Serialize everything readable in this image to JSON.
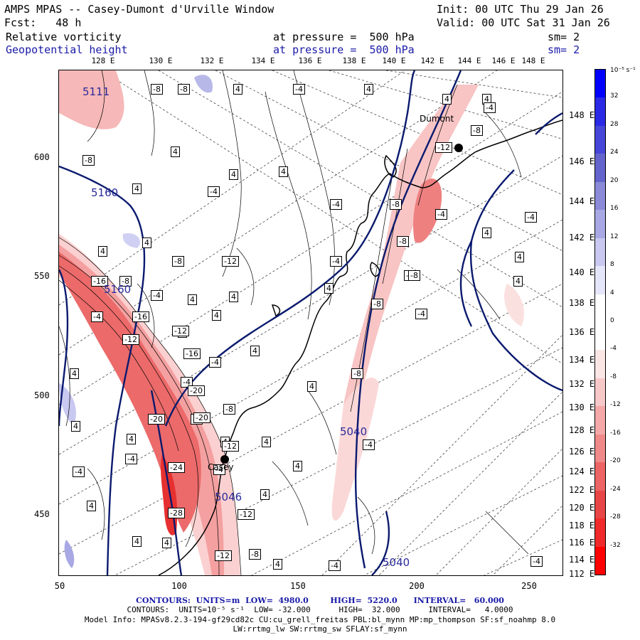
{
  "header": {
    "title": "AMPS MPAS -- Casey-Dumont d'Urville Window",
    "init": "Init: 00 UTC Thu 29 Jan 26",
    "fcst": "Fcst:   48 h",
    "valid": "Valid: 00 UTC Sat 31 Jan 26",
    "field1": "Relative vorticity",
    "field1_level": "at pressure =  500 hPa",
    "field1_sm": "sm= 2",
    "field2": "Geopotential height",
    "field2_level": "at pressure =  500 hPa",
    "field2_sm": "sm= 2"
  },
  "top_longitudes": [
    "128 E",
    "130 E",
    "132 E",
    "134 E",
    "136 E",
    "138 E",
    "140 E",
    "142 E",
    "144 E",
    "146 E",
    "148 E"
  ],
  "right_latitudes": [
    "148 E",
    "146 E",
    "144 E",
    "142 E",
    "140 E",
    "138 E",
    "136 E",
    "134 E",
    "132 E",
    "130 E",
    "128 E",
    "126 E",
    "124 E",
    "122 E",
    "120 E",
    "118 E",
    "116 E",
    "114 E",
    "112 E"
  ],
  "x_ticks": [
    "50",
    "100",
    "150",
    "200",
    "250"
  ],
  "y_ticks": [
    "600",
    "550",
    "500",
    "450"
  ],
  "colorbar": {
    "unit": "10⁻⁵ s⁻¹",
    "labels": [
      "32",
      "28",
      "24",
      "20",
      "16",
      "12",
      "8",
      "4",
      "0",
      "-4",
      "-8",
      "-12",
      "-16",
      "-20",
      "-24",
      "-28",
      "-32"
    ],
    "colors": [
      "#0000ff",
      "#2a2ae6",
      "#4646d8",
      "#6464cc",
      "#8a8ad8",
      "#a8a8e4",
      "#c8c8f0",
      "#e6e6fa",
      "#ffffff",
      "#ffffff",
      "#fbe6e6",
      "#f8c8c8",
      "#f4a8a8",
      "#f08a8a",
      "#ec6464",
      "#e84646",
      "#f02a2a",
      "#ff0000"
    ]
  },
  "height_labels": [
    "5111",
    "5160",
    "5160",
    "5046",
    "5040",
    "5040"
  ],
  "cities": [
    "Dumont",
    "Casey"
  ],
  "footer": {
    "line1": "CONTOURS:  UNITS=m  LOW=  4980.0        HIGH=  5220.0      INTERVAL=   60.000",
    "line2": "CONTOURS:  UNITS=10⁻⁵ s⁻¹  LOW= -32.000      HIGH=  32.000      INTERVAL=   4.0000",
    "line3": "Model Info: MPASv8.2.3-194-gf29cd82c CU:cu_grell_freitas PBL:bl_mynn MP:mp_thompson SF:sf_noahmp 8.0",
    "line4": "LW:rrtmg_lw SW:rrtmg_sw SFLAY:sf_mynn"
  },
  "vort_labels": [
    "-8",
    "-8",
    "4",
    "-4",
    "4",
    "4",
    "4",
    "-4",
    "-8",
    "-12",
    "-8",
    "4",
    "4",
    "4",
    "-4",
    "-8",
    "-4",
    "4",
    "4",
    "4",
    "-8",
    "-12",
    "-4",
    "4",
    "-4",
    "-4",
    "4",
    "-8",
    "-4",
    "4",
    "4",
    "-16",
    "-8",
    "4",
    "4",
    "-4",
    "-4",
    "4",
    "-8",
    "-8",
    "-4",
    "-16",
    "-12",
    "4",
    "4",
    "4",
    "-12",
    "-16",
    "-4",
    "-8",
    "4",
    "4",
    "-4",
    "-20",
    "-8",
    "4",
    "-20",
    "-20",
    "4",
    "4",
    "-8",
    "-12",
    "-4",
    "-4",
    "-24",
    "-4",
    "-28",
    "4",
    "4",
    "-12",
    "-12",
    "4",
    "4",
    "-8",
    "4",
    "-4",
    "-4",
    "4",
    "-4"
  ]
}
